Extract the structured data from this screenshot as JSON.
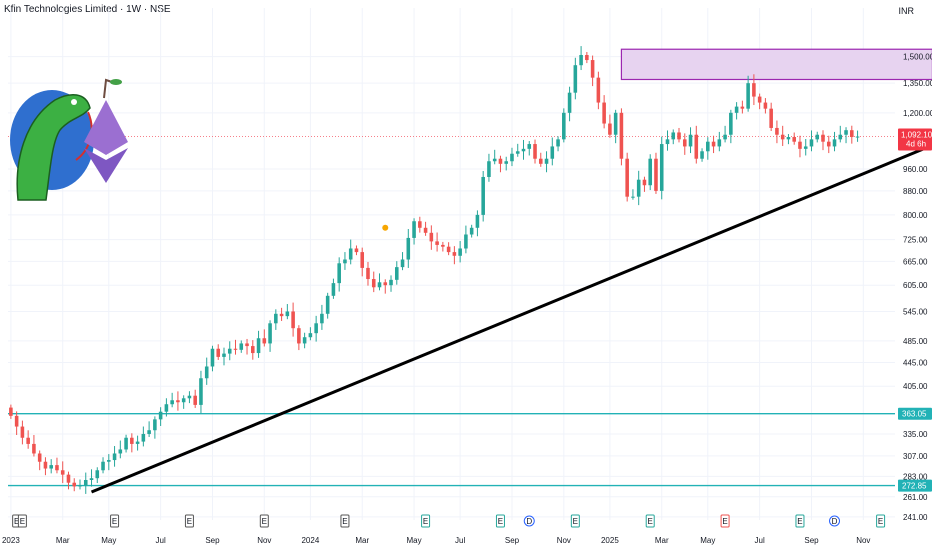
{
  "header": {
    "symbol": "Kfin Technologies Limited",
    "interval": "1W",
    "exchange": "NSE",
    "separator": " · "
  },
  "currency": "INR",
  "colors": {
    "up": "#26a69a",
    "down": "#ef5350",
    "trendline": "#000000",
    "support": "#22b2b6",
    "zone_fill": "#e7d3f0",
    "zone_border": "#9c27b0",
    "price_tag": "#f23645",
    "level_tag": "#22b2b6"
  },
  "chart_data": {
    "type": "candlestick",
    "interval": "1W",
    "y_scale": "log",
    "ylim": [
      238,
      1820
    ],
    "y_ticks": [
      1500,
      1350,
      1200,
      960,
      880,
      800,
      725,
      665,
      605,
      545,
      485,
      445,
      405,
      335,
      307,
      283,
      261,
      241
    ],
    "y_tick_labels": [
      "1,500.00",
      "1,350.00",
      "1,200.00",
      "960.00",
      "880.00",
      "800.00",
      "725.00",
      "665.00",
      "605.00",
      "545.00",
      "485.00",
      "445.00",
      "405.00",
      "335.00",
      "307.00",
      "283.00",
      "261.00",
      "241.00"
    ],
    "x_ticks": [
      "2023",
      "Mar",
      "May",
      "Jul",
      "Sep",
      "Nov",
      "2024",
      "Mar",
      "May",
      "Jul",
      "Sep",
      "Nov",
      "2025",
      "Mar",
      "May",
      "Jul",
      "Sep",
      "Nov"
    ],
    "x_tick_weeks": [
      0,
      9,
      17,
      26,
      35,
      44,
      52,
      61,
      70,
      78,
      87,
      96,
      104,
      113,
      121,
      130,
      139,
      148
    ],
    "current_price": {
      "value": 1092.1,
      "label": "1,092.10",
      "countdown": "4d 6h"
    },
    "levels": [
      {
        "value": 363.05,
        "label": "363.05"
      },
      {
        "value": 272.85,
        "label": "272.85"
      }
    ],
    "resistance_zone": {
      "from_week": 106,
      "to_week": 160,
      "low": 1370,
      "high": 1545
    },
    "trendline": {
      "from": {
        "week": 14,
        "price": 266
      },
      "to": {
        "week": 160,
        "price": 1055
      }
    },
    "event_markers": [
      {
        "week": 1,
        "type": "E"
      },
      {
        "week": 2,
        "type": "E"
      },
      {
        "week": 18,
        "type": "E"
      },
      {
        "week": 31,
        "type": "E"
      },
      {
        "week": 44,
        "type": "E"
      },
      {
        "week": 58,
        "type": "E"
      },
      {
        "week": 72,
        "type": "E"
      },
      {
        "week": 85,
        "type": "E"
      },
      {
        "week": 90,
        "type": "D"
      },
      {
        "week": 98,
        "type": "E"
      },
      {
        "week": 111,
        "type": "E"
      },
      {
        "week": 124,
        "type": "E"
      },
      {
        "week": 137,
        "type": "E"
      },
      {
        "week": 143,
        "type": "D"
      },
      {
        "week": 151,
        "type": "E"
      }
    ],
    "dividend_dot": {
      "week": 65,
      "price": 760
    },
    "candles": []
  }
}
